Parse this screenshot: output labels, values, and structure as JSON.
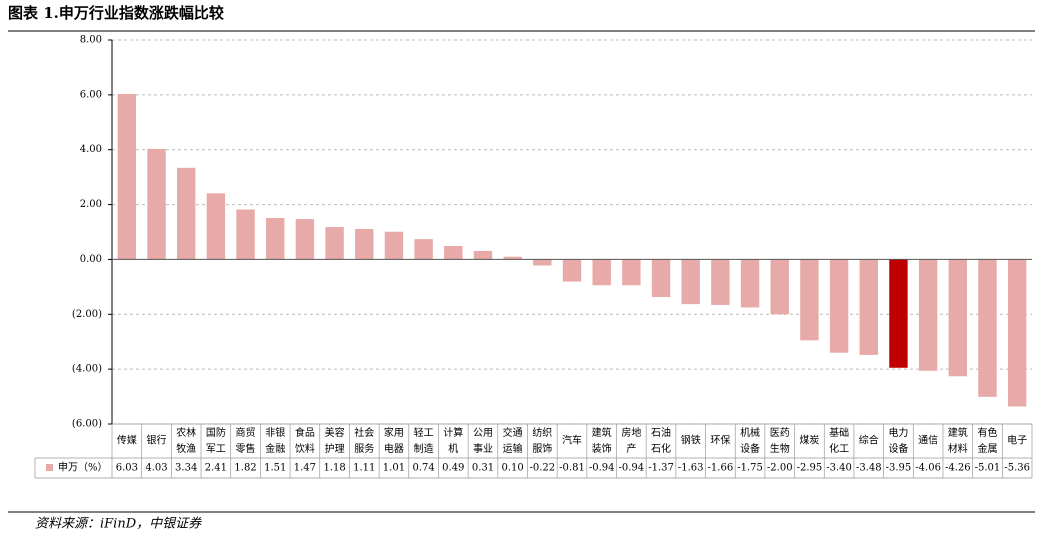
{
  "chart_data": {
    "type": "bar",
    "title": "图表 1.申万行业指数涨跌幅比较",
    "source": "资料来源：iFinD，中银证券",
    "categories": [
      "传媒",
      "银行",
      "农林牧渔",
      "国防军工",
      "商贸零售",
      "非银金融",
      "食品饮料",
      "美容护理",
      "社会服务",
      "家用电器",
      "轻工制造",
      "计算机",
      "公用事业",
      "交通运输",
      "纺织服饰",
      "汽车",
      "建筑装饰",
      "房地产",
      "石油石化",
      "钢铁",
      "环保",
      "机械设备",
      "医药生物",
      "煤炭",
      "基础化工",
      "综合",
      "电力设备",
      "通信",
      "建筑材料",
      "有色金属",
      "电子"
    ],
    "series": [
      {
        "name": "申万（%）",
        "color": "#e8a9a9",
        "colors": [
          "#e8a9a9",
          "#e8a9a9",
          "#e8a9a9",
          "#e8a9a9",
          "#e8a9a9",
          "#e8a9a9",
          "#e8a9a9",
          "#e8a9a9",
          "#e8a9a9",
          "#e8a9a9",
          "#e8a9a9",
          "#e8a9a9",
          "#e8a9a9",
          "#e8a9a9",
          "#e8a9a9",
          "#e8a9a9",
          "#e8a9a9",
          "#e8a9a9",
          "#e8a9a9",
          "#e8a9a9",
          "#e8a9a9",
          "#e8a9a9",
          "#e8a9a9",
          "#e8a9a9",
          "#e8a9a9",
          "#e8a9a9",
          "#c00000",
          "#e8a9a9",
          "#e8a9a9",
          "#e8a9a9",
          "#e8a9a9"
        ],
        "values": [
          6.03,
          4.03,
          3.34,
          2.41,
          1.82,
          1.51,
          1.47,
          1.18,
          1.11,
          1.01,
          0.74,
          0.49,
          0.31,
          0.1,
          -0.22,
          -0.81,
          -0.94,
          -0.94,
          -1.37,
          -1.63,
          -1.66,
          -1.75,
          -2,
          -2.95,
          -3.4,
          -3.48,
          -3.95,
          -4.06,
          -4.26,
          -5.01,
          -5.36
        ],
        "value_labels": [
          "6.03",
          "4.03",
          "3.34",
          "2.41",
          "1.82",
          "1.51",
          "1.47",
          "1.18",
          "1.11",
          "1.01",
          "0.74",
          "0.49",
          "0.31",
          "0.10",
          "-0.22",
          "-0.81",
          "-0.94",
          "-0.94",
          "-1.37",
          "-1.63",
          "-1.66",
          "-1.75",
          "-2.00",
          "-2.95",
          "-3.40",
          "-3.48",
          "-3.95",
          "-4.06",
          "-4.26",
          "-5.01",
          "-5.36"
        ]
      }
    ],
    "ylim": [
      -6,
      8
    ],
    "yticks": [
      {
        "value": -6,
        "label": "(6.00)"
      },
      {
        "value": -4,
        "label": "(4.00)"
      },
      {
        "value": -2,
        "label": "(2.00)"
      },
      {
        "value": 0,
        "label": "0.00"
      },
      {
        "value": 2,
        "label": "2.00"
      },
      {
        "value": 4,
        "label": "4.00"
      },
      {
        "value": 6,
        "label": "6.00"
      },
      {
        "value": 8,
        "label": "8.00"
      }
    ],
    "grid": true
  }
}
